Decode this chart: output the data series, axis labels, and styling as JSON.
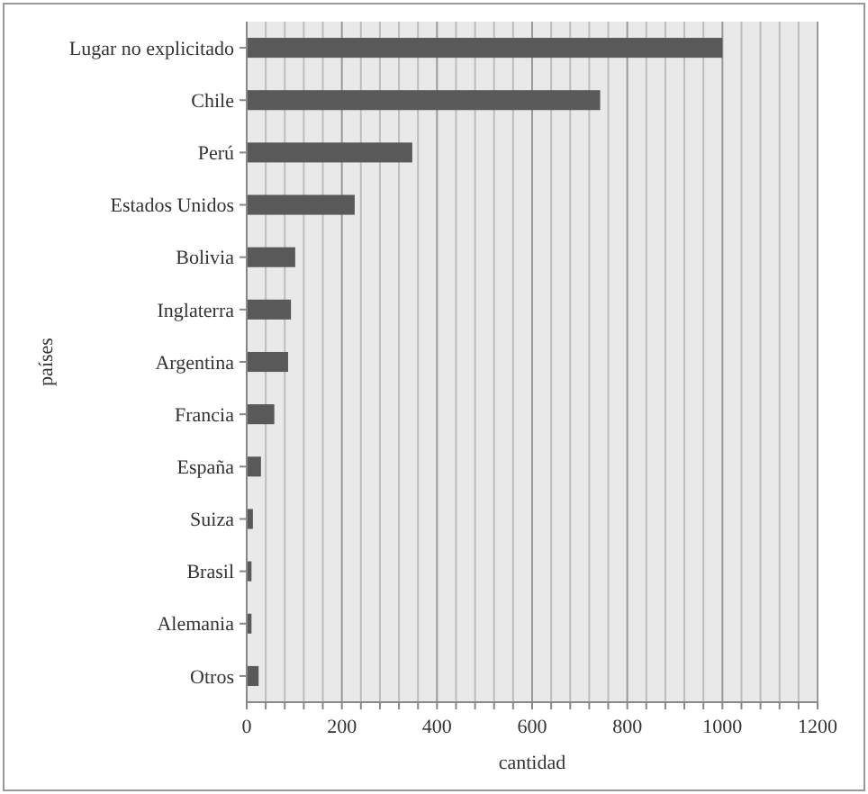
{
  "chart_data": {
    "type": "bar",
    "orientation": "horizontal",
    "xlabel": "cantidad",
    "ylabel": "países",
    "categories": [
      "Lugar no explicitado",
      "Chile",
      "Perú",
      "Estados Unidos",
      "Bolivia",
      "Inglaterra",
      "Argentina",
      "Francia",
      "España",
      "Suiza",
      "Brasil",
      "Alemania",
      "Otros"
    ],
    "values": [
      1000,
      743,
      348,
      227,
      102,
      93,
      87,
      58,
      30,
      13,
      10,
      10,
      25
    ],
    "color": "#595959",
    "xlim": [
      0,
      1200
    ],
    "xticks": [
      0,
      {
        "value": 40,
        "label": null
      },
      {
        "value": 80,
        "label": null
      },
      {
        "value": 120,
        "label": null
      },
      {
        "value": 160,
        "label": null
      },
      200,
      {
        "value": 240,
        "label": null
      },
      {
        "value": 280,
        "label": null
      },
      {
        "value": 320,
        "label": null
      },
      {
        "value": 360,
        "label": null
      },
      400,
      {
        "value": 440,
        "label": null
      },
      {
        "value": 480,
        "label": null
      },
      {
        "value": 520,
        "label": null
      },
      {
        "value": 560,
        "label": null
      },
      600,
      {
        "value": 640,
        "label": null
      },
      {
        "value": 680,
        "label": null
      },
      {
        "value": 720,
        "label": null
      },
      {
        "value": 760,
        "label": null
      },
      800,
      {
        "value": 840,
        "label": null
      },
      {
        "value": 880,
        "label": null
      },
      {
        "value": 920,
        "label": null
      },
      {
        "value": 960,
        "label": null
      },
      1000,
      {
        "value": 1040,
        "label": null
      },
      {
        "value": 1080,
        "label": null
      },
      {
        "value": 1120,
        "label": null
      },
      {
        "value": 1160,
        "label": null
      },
      1200
    ],
    "grid": "x"
  }
}
